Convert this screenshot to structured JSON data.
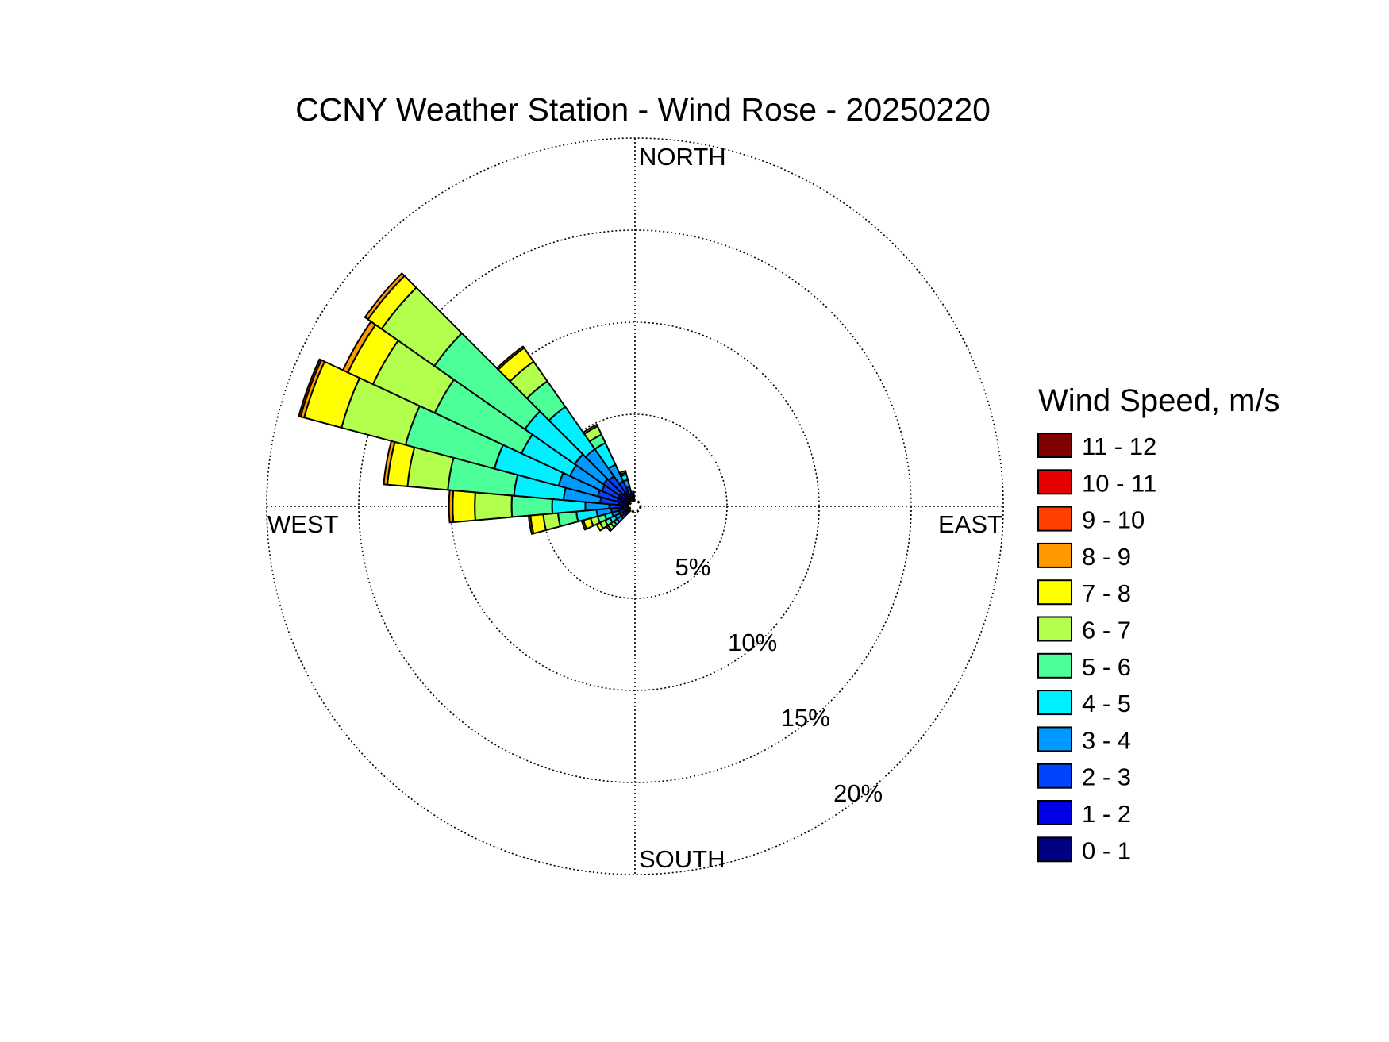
{
  "chart_data": {
    "type": "wind-rose",
    "title": "CCNY Weather Station - Wind Rose - 20250220",
    "direction_labels": {
      "north": "NORTH",
      "south": "SOUTH",
      "east": "EAST",
      "west": "WEST"
    },
    "ring_values": [
      5,
      10,
      15,
      20
    ],
    "ring_labels": [
      "5%",
      "10%",
      "15%",
      "20%"
    ],
    "r_max": 20,
    "inner_radius": 0.3,
    "grid": true,
    "legend": {
      "title": "Wind Speed, m/s",
      "placement": "right",
      "entries": [
        {
          "label": "11 - 12",
          "color": "#800000"
        },
        {
          "label": "10 - 11",
          "color": "#e60000"
        },
        {
          "label": "9 - 10",
          "color": "#ff4000"
        },
        {
          "label": "8 - 9",
          "color": "#ff9900"
        },
        {
          "label": "7 - 8",
          "color": "#ffff00"
        },
        {
          "label": "6 - 7",
          "color": "#b3ff4d"
        },
        {
          "label": "5 - 6",
          "color": "#4dff99"
        },
        {
          "label": "4 - 5",
          "color": "#00f0ff"
        },
        {
          "label": "3 - 4",
          "color": "#0099ff"
        },
        {
          "label": "2 - 3",
          "color": "#0044ff"
        },
        {
          "label": "1 - 2",
          "color": "#0000e6"
        },
        {
          "label": "0 - 1",
          "color": "#000080"
        }
      ]
    },
    "speed_bins": [
      "0 - 1",
      "1 - 2",
      "2 - 3",
      "3 - 4",
      "4 - 5",
      "5 - 6",
      "6 - 7",
      "7 - 8",
      "8 - 9",
      "9 - 10",
      "10 - 11",
      "11 - 12"
    ],
    "sector_width_deg": 10,
    "sectors": [
      {
        "direction_deg": 230,
        "cumulative_pct": [
          0.1,
          0.3,
          0.6,
          0.9,
          1.1,
          1.3,
          1.5,
          1.6,
          1.6,
          1.6,
          1.6,
          1.6
        ]
      },
      {
        "direction_deg": 240,
        "cumulative_pct": [
          0.1,
          0.3,
          0.6,
          0.9,
          1.2,
          1.5,
          1.8,
          2.0,
          2.0,
          2.0,
          2.0,
          2.0
        ]
      },
      {
        "direction_deg": 250,
        "cumulative_pct": [
          0.1,
          0.3,
          0.6,
          1.0,
          1.4,
          1.8,
          2.2,
          2.6,
          2.7,
          2.7,
          2.7,
          2.7
        ]
      },
      {
        "direction_deg": 260,
        "cumulative_pct": [
          0.1,
          0.4,
          1.0,
          1.8,
          2.9,
          3.9,
          4.7,
          5.4,
          5.5,
          5.5,
          5.5,
          5.5
        ]
      },
      {
        "direction_deg": 270,
        "cumulative_pct": [
          0.1,
          0.4,
          1.1,
          2.4,
          4.2,
          6.4,
          8.4,
          9.6,
          9.8,
          9.8,
          9.8,
          9.8
        ]
      },
      {
        "direction_deg": 280,
        "cumulative_pct": [
          0.1,
          0.6,
          1.6,
          3.6,
          6.3,
          9.9,
          12.1,
          13.2,
          13.4,
          13.4,
          13.4,
          13.4
        ]
      },
      {
        "direction_deg": 290,
        "cumulative_pct": [
          0.1,
          0.7,
          1.8,
          4.0,
          7.6,
          12.6,
          16.2,
          18.3,
          18.5,
          18.6,
          18.6,
          18.6
        ]
      },
      {
        "direction_deg": 300,
        "cumulative_pct": [
          0.1,
          0.7,
          1.7,
          3.6,
          6.5,
          11.7,
          15.4,
          16.9,
          17.2,
          17.2,
          17.2,
          17.2
        ]
      },
      {
        "direction_deg": 310,
        "cumulative_pct": [
          0.1,
          0.7,
          1.8,
          3.7,
          7.0,
          13.0,
          16.5,
          17.4,
          17.6,
          17.6,
          17.6,
          17.6
        ]
      },
      {
        "direction_deg": 320,
        "cumulative_pct": [
          0.1,
          0.6,
          1.7,
          3.5,
          6.3,
          8.0,
          9.3,
          10.2,
          10.3,
          10.3,
          10.3,
          10.3
        ]
      },
      {
        "direction_deg": 330,
        "cumulative_pct": [
          0.1,
          0.6,
          1.2,
          2.2,
          3.5,
          4.0,
          4.5,
          4.6,
          4.6,
          4.6,
          4.6,
          4.6
        ]
      },
      {
        "direction_deg": 340,
        "cumulative_pct": [
          0.1,
          0.4,
          0.8,
          1.2,
          1.5,
          1.6,
          1.7,
          1.7,
          1.7,
          1.7,
          1.7,
          1.7
        ]
      },
      {
        "direction_deg": 350,
        "cumulative_pct": [
          0.1,
          0.2,
          0.3,
          0.4,
          0.5,
          0.5,
          0.5,
          0.5,
          0.5,
          0.5,
          0.5,
          0.5
        ]
      }
    ]
  }
}
